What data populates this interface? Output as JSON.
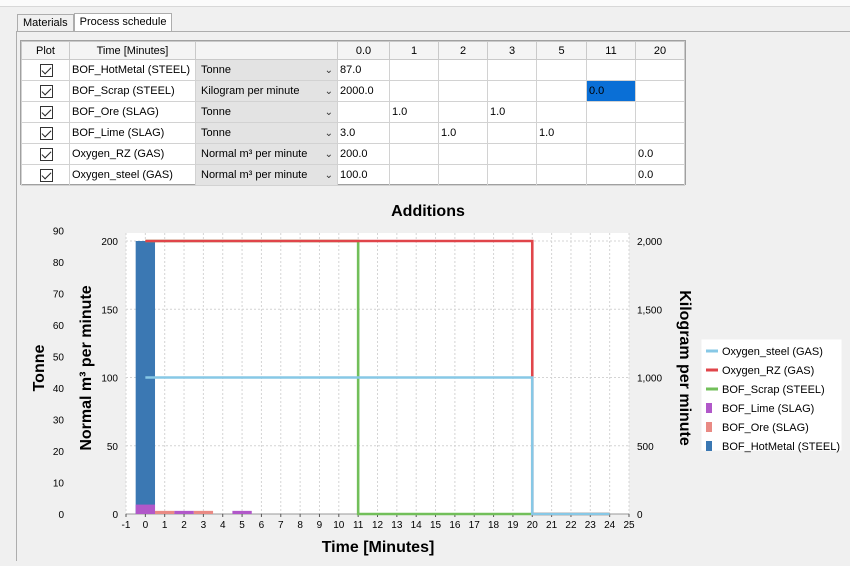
{
  "tabs": [
    {
      "label": "Materials",
      "active": false
    },
    {
      "label": "Process schedule",
      "active": true
    }
  ],
  "grid": {
    "headers": {
      "plot": "Plot",
      "time": "Time [Minutes]",
      "unit": "",
      "times": [
        "0.0",
        "1",
        "2",
        "3",
        "5",
        "11",
        "20"
      ]
    },
    "rows": [
      {
        "name": "BOF_HotMetal (STEEL)",
        "unit": "Tonne",
        "values": [
          "87.0",
          "",
          "",
          "",
          "",
          "",
          ""
        ]
      },
      {
        "name": "BOF_Scrap (STEEL)",
        "unit": "Kilogram per minute",
        "values": [
          "2000.0",
          "",
          "",
          "",
          "",
          "0.0",
          ""
        ]
      },
      {
        "name": "BOF_Ore (SLAG)",
        "unit": "Tonne",
        "values": [
          "",
          "1.0",
          "",
          "1.0",
          "",
          "",
          ""
        ]
      },
      {
        "name": "BOF_Lime (SLAG)",
        "unit": "Tonne",
        "values": [
          "3.0",
          "",
          "1.0",
          "",
          "1.0",
          "",
          ""
        ]
      },
      {
        "name": "Oxygen_RZ (GAS)",
        "unit": "Normal m³ per minute",
        "values": [
          "200.0",
          "",
          "",
          "",
          "",
          "",
          "0.0"
        ]
      },
      {
        "name": "Oxygen_steel (GAS)",
        "unit": "Normal m³ per minute",
        "values": [
          "100.0",
          "",
          "",
          "",
          "",
          "",
          "0.0"
        ]
      }
    ]
  },
  "chart_data": {
    "type": "line",
    "title": "Additions",
    "xlabel": "Time [Minutes]",
    "ylabel_left_outer": "Tonne",
    "ylabel_left_inner": "Normal m³ per minute",
    "ylabel_right": "Kilogram per minute",
    "xlim": [
      -1,
      25
    ],
    "x_ticks": [
      "-1",
      "0",
      "1",
      "2",
      "3",
      "4",
      "5",
      "6",
      "7",
      "8",
      "9",
      "10",
      "11",
      "12",
      "13",
      "14",
      "15",
      "16",
      "17",
      "18",
      "19",
      "20",
      "21",
      "22",
      "23",
      "24",
      "25"
    ],
    "y_tonne_ticks": [
      "0",
      "10",
      "20",
      "30",
      "40",
      "50",
      "60",
      "70",
      "80",
      "90"
    ],
    "y_normal_ticks": [
      "0",
      "50",
      "100",
      "150",
      "200"
    ],
    "y_kg_ticks": [
      "0",
      "500",
      "1,000",
      "1,500",
      "2,000"
    ],
    "grid": true,
    "legend_position": "right",
    "series": [
      {
        "name": "Oxygen_steel (GAS)",
        "kind": "line",
        "axis": "normal",
        "color": "#87c8e6",
        "points": [
          [
            0,
            100
          ],
          [
            20,
            100
          ],
          [
            20,
            0
          ],
          [
            24,
            0
          ]
        ]
      },
      {
        "name": "Oxygen_RZ (GAS)",
        "kind": "line",
        "axis": "normal",
        "color": "#e0454a",
        "points": [
          [
            0,
            200
          ],
          [
            20,
            200
          ],
          [
            20,
            0
          ],
          [
            24,
            0
          ]
        ]
      },
      {
        "name": "BOF_Scrap (STEEL)",
        "kind": "line",
        "axis": "kg",
        "color": "#72bf5a",
        "points": [
          [
            0,
            2000
          ],
          [
            11,
            2000
          ],
          [
            11,
            0
          ],
          [
            24,
            0
          ]
        ]
      },
      {
        "name": "BOF_Lime (SLAG)",
        "kind": "bar",
        "axis": "tonne",
        "color": "#b158c9",
        "bars": [
          [
            0,
            3.0
          ],
          [
            2,
            1.0
          ],
          [
            5,
            1.0
          ]
        ]
      },
      {
        "name": "BOF_Ore (SLAG)",
        "kind": "bar",
        "axis": "tonne",
        "color": "#e98a84",
        "bars": [
          [
            1,
            1.0
          ],
          [
            3,
            1.0
          ]
        ]
      },
      {
        "name": "BOF_HotMetal (STEEL)",
        "kind": "bar",
        "axis": "tonne",
        "color": "#3b78b3",
        "bars": [
          [
            0,
            87.0
          ]
        ]
      }
    ]
  }
}
